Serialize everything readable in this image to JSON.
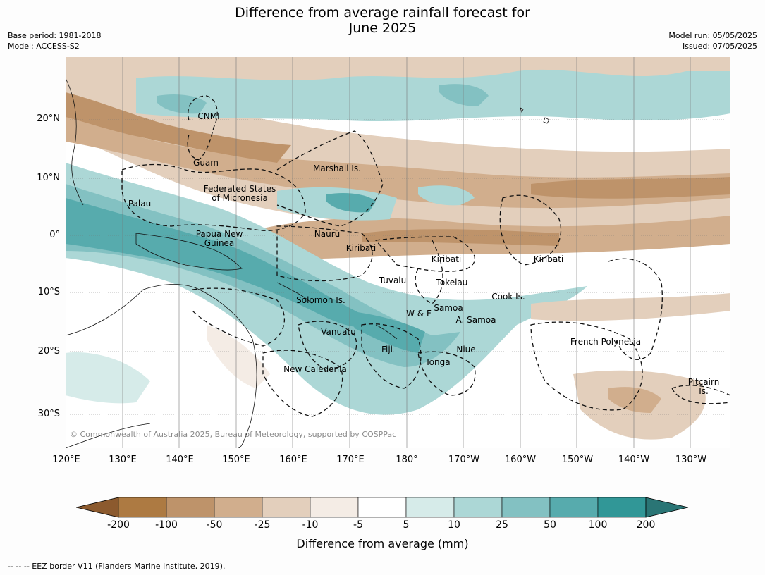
{
  "title_line1": "Difference from average rainfall forecast for",
  "title_line2": "June 2025",
  "base_period": "Base period: 1981-2018",
  "model": "Model: ACCESS-S2",
  "model_run": "Model run: 05/05/2025",
  "issued": "Issued: 07/05/2025",
  "lat_labels": [
    "20°N",
    "10°N",
    "0°",
    "10°S",
    "20°S",
    "30°S"
  ],
  "lon_labels": [
    "120°E",
    "130°E",
    "140°E",
    "150°E",
    "160°E",
    "170°E",
    "180°",
    "170°W",
    "160°W",
    "150°W",
    "140°W",
    "130°W"
  ],
  "regions": {
    "cnmi": "CNMI",
    "guam": "Guam",
    "marshall": "Marshall Is.",
    "fsm1": "Federated States",
    "fsm2": "of Micronesia",
    "palau": "Palau",
    "png1": "Papua New",
    "png2": "Guinea",
    "nauru": "Nauru",
    "kiribati_w": "Kiribati",
    "kiribati_c": "Kiribati",
    "kiribati_e": "Kiribati",
    "tuvalu": "Tuvalu",
    "tokelau": "Tokelau",
    "cook": "Cook Is.",
    "solomon": "Solomon Is.",
    "wf": "W & F",
    "samoa": "Samoa",
    "asamoa": "A. Samoa",
    "vanuatu": "Vanuatu",
    "fiji": "Fiji",
    "niue": "Niue",
    "tonga": "Tonga",
    "french_polynesia": "French Polynesia",
    "new_caledonia": "New Caledonia",
    "pitcairn1": "Pitcairn",
    "pitcairn2": "Is."
  },
  "copyright": "© Commonwealth of Australia 2025, Bureau of Meteorology, supported by COSPPac",
  "colorbar": {
    "ticks": [
      "-200",
      "-100",
      "-50",
      "-25",
      "-10",
      "-5",
      "5",
      "10",
      "25",
      "50",
      "100",
      "200"
    ],
    "colors": [
      "#8c5a2e",
      "#ad7a42",
      "#be936a",
      "#d1ae8d",
      "#e3cfbc",
      "#f4ece5",
      "#ffffff",
      "#d6ebe9",
      "#acd7d6",
      "#83c1c2",
      "#57abad",
      "#319797",
      "#2a7575"
    ],
    "label": "Difference from average (mm)"
  },
  "footnote": "--  --  -- EEZ border V11 (Flanders Marine Institute, 2019)."
}
